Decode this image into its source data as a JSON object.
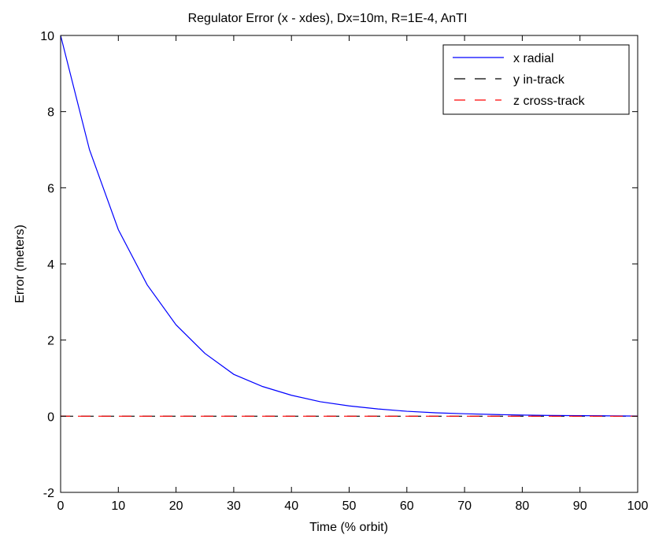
{
  "chart_data": {
    "type": "line",
    "title": "Regulator Error (x - xdes), Dx=10m, R=1E-4, AnTI",
    "xlabel": "Time (% orbit)",
    "ylabel": "Error (meters)",
    "xlim": [
      0,
      100
    ],
    "ylim": [
      -2,
      10
    ],
    "xticks": [
      0,
      10,
      20,
      30,
      40,
      50,
      60,
      70,
      80,
      90,
      100
    ],
    "yticks": [
      -2,
      0,
      2,
      4,
      6,
      8,
      10
    ],
    "grid": false,
    "legend_position": "top-right",
    "series": [
      {
        "name": "x radial",
        "color": "#0000ff",
        "style": "solid",
        "x": [
          0,
          5,
          10,
          15,
          20,
          25,
          30,
          35,
          40,
          45,
          50,
          55,
          60,
          65,
          70,
          75,
          80,
          85,
          90,
          95,
          100
        ],
        "y": [
          10,
          7.0,
          4.9,
          3.45,
          2.4,
          1.65,
          1.1,
          0.78,
          0.55,
          0.38,
          0.27,
          0.19,
          0.13,
          0.09,
          0.065,
          0.045,
          0.03,
          0.02,
          0.015,
          0.01,
          0.005
        ]
      },
      {
        "name": "y in-track",
        "color": "#000000",
        "style": "dashed",
        "x": [
          0,
          100
        ],
        "y": [
          0,
          0
        ]
      },
      {
        "name": "z cross-track",
        "color": "#ff0000",
        "style": "dashed",
        "x": [
          0,
          100
        ],
        "y": [
          0,
          0
        ]
      }
    ]
  }
}
